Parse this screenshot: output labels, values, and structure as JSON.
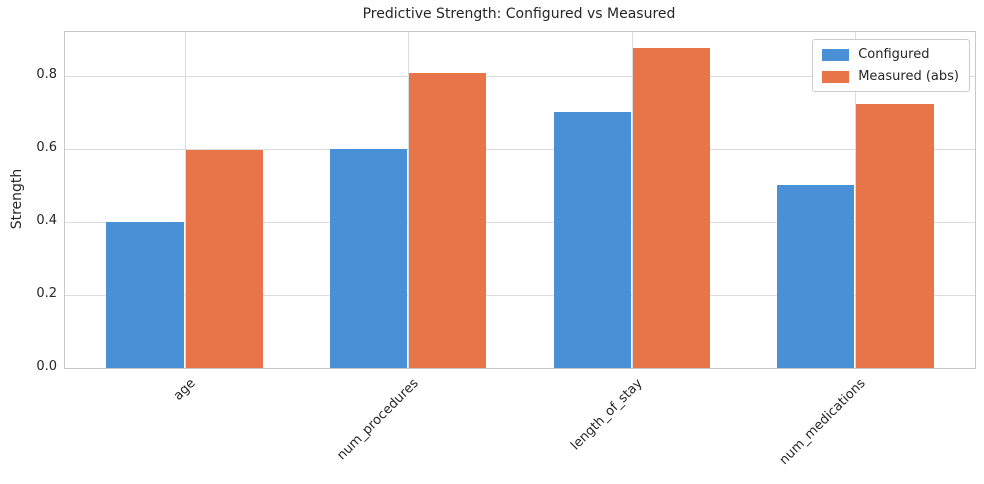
{
  "chart_data": {
    "type": "bar",
    "title": "Predictive Strength: Configured vs Measured",
    "xlabel": "",
    "ylabel": "Strength",
    "categories": [
      "age",
      "num_procedures",
      "length_of_stay",
      "num_medications"
    ],
    "series": [
      {
        "name": "Configured",
        "color": "#4a90d6",
        "values": [
          0.4,
          0.6,
          0.7,
          0.5
        ]
      },
      {
        "name": "Measured (abs)",
        "color": "#e8744a",
        "values": [
          0.595,
          0.808,
          0.875,
          0.721
        ]
      }
    ],
    "yticks": [
      0.0,
      0.2,
      0.4,
      0.6,
      0.8
    ],
    "ylim": [
      0,
      0.919
    ],
    "grid": true,
    "legend_position": "upper right",
    "bar_width_fraction": 0.35,
    "x_tick_rotation": 45,
    "colors": {
      "grid": "#dcdcdc",
      "spine": "#c9c9c9",
      "text": "#262626",
      "background": "#ffffff"
    }
  }
}
